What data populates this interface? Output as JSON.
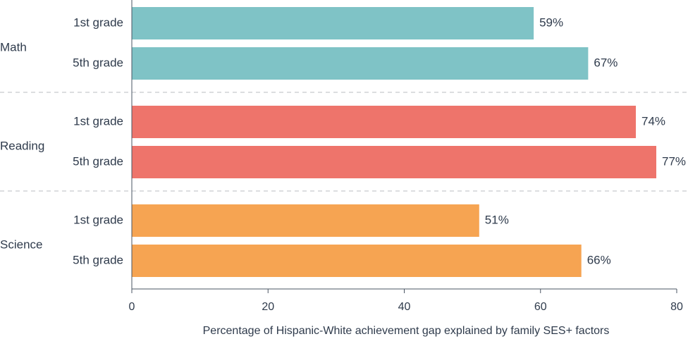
{
  "chart_data": {
    "type": "bar",
    "orientation": "horizontal",
    "xlabel": "Percentage of Hispanic-White achievement gap explained by family SES+ factors",
    "xlim": [
      0,
      80
    ],
    "xticks": [
      0,
      20,
      40,
      60,
      80
    ],
    "groups": [
      {
        "name": "Math",
        "color": "#7fc3c6",
        "bars": [
          {
            "label": "1st grade",
            "value": 59,
            "value_label": "59%"
          },
          {
            "label": "5th grade",
            "value": 67,
            "value_label": "67%"
          }
        ]
      },
      {
        "name": "Reading",
        "color": "#ee746b",
        "bars": [
          {
            "label": "1st grade",
            "value": 74,
            "value_label": "74%"
          },
          {
            "label": "5th grade",
            "value": 77,
            "value_label": "77%"
          }
        ]
      },
      {
        "name": "Science",
        "color": "#f6a452",
        "bars": [
          {
            "label": "1st grade",
            "value": 51,
            "value_label": "51%"
          },
          {
            "label": "5th grade",
            "value": 66,
            "value_label": "66%"
          }
        ]
      }
    ],
    "grid": false,
    "group_separators": "dashed"
  }
}
